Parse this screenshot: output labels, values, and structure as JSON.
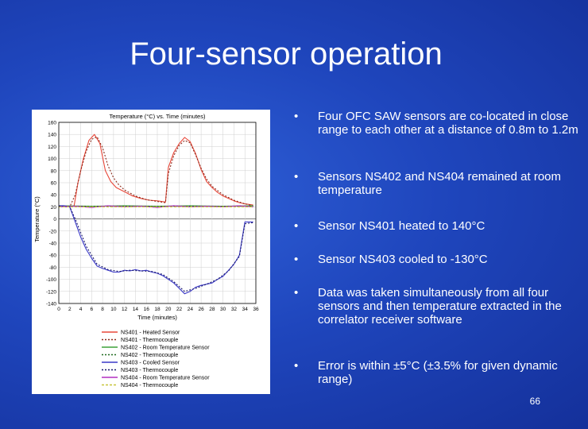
{
  "slide": {
    "title": "Four-sensor operation",
    "page_number": "66"
  },
  "bullets": [
    {
      "text": "Four OFC SAW sensors are co-located in close range to each other at a distance of 0.8m to 1.2m"
    },
    {
      "text": "Sensors NS402 and NS404 remained at room temperature"
    },
    {
      "text": "Sensor NS401 heated to 140°C"
    },
    {
      "text": "Sensor NS403 cooled to -130°C"
    },
    {
      "text": "Data was taken simultaneously from all four sensors and then temperature extracted in the correlator receiver software"
    },
    {
      "text": "Error is within ±5°C (±3.5% for given dynamic range)"
    }
  ],
  "bullet_glyph": "•",
  "chart_data": {
    "type": "line",
    "title": "Temperature (°C) vs. Time (minutes)",
    "xlabel": "Time (minutes)",
    "ylabel": "Temperature (°C)",
    "xlim": [
      0,
      36
    ],
    "ylim": [
      -140,
      160
    ],
    "xticks": [
      0,
      2,
      4,
      6,
      8,
      10,
      12,
      14,
      16,
      18,
      20,
      22,
      24,
      26,
      28,
      30,
      32,
      34,
      36
    ],
    "yticks": [
      160,
      140,
      120,
      100,
      80,
      60,
      40,
      20,
      0,
      -20,
      -40,
      -60,
      -80,
      -100,
      -120,
      -140
    ],
    "grid": true,
    "legend_position": "bottom",
    "series": [
      {
        "name": "NS401 - Heated Sensor",
        "color": "#e8483a",
        "dash": "solid",
        "x": [
          0,
          2,
          2.8,
          3.5,
          4.5,
          5.5,
          6.5,
          7.5,
          8.5,
          9.5,
          10.5,
          12,
          13.5,
          15,
          16.5,
          18,
          19.5,
          20,
          21,
          22,
          23,
          24,
          25,
          26,
          27,
          28,
          29,
          30,
          31,
          32,
          33,
          34,
          35.5
        ],
        "y": [
          22,
          20,
          22,
          60,
          100,
          130,
          140,
          125,
          80,
          62,
          52,
          45,
          38,
          34,
          31,
          30,
          28,
          85,
          110,
          125,
          135,
          128,
          108,
          82,
          62,
          52,
          44,
          38,
          34,
          30,
          27,
          25,
          23
        ]
      },
      {
        "name": "NS401 - Thermocouple",
        "color": "#8b2a1a",
        "dash": "2,2",
        "x": [
          0,
          2,
          3,
          4,
          5,
          6,
          7,
          8,
          9,
          10,
          11,
          12,
          14,
          16,
          18,
          19.5,
          20,
          21,
          22,
          23,
          24,
          25,
          26,
          27,
          28,
          30,
          32,
          34,
          35.5
        ],
        "y": [
          21,
          20,
          40,
          80,
          112,
          132,
          136,
          118,
          88,
          68,
          56,
          48,
          38,
          32,
          29,
          27,
          75,
          105,
          122,
          130,
          126,
          106,
          84,
          66,
          54,
          40,
          31,
          25,
          22
        ]
      },
      {
        "name": "NS402 - Room Temperature Sensor",
        "color": "#3fa23a",
        "dash": "solid",
        "x": [
          0,
          6,
          12,
          18,
          24,
          30,
          35.5
        ],
        "y": [
          22,
          21,
          22,
          21,
          22,
          21,
          22
        ]
      },
      {
        "name": "NS402 - Thermocouple",
        "color": "#1f6b1f",
        "dash": "2,2",
        "x": [
          0,
          12,
          24,
          35.5
        ],
        "y": [
          21,
          21,
          21,
          21
        ]
      },
      {
        "name": "NS403 - Cooled Sensor",
        "color": "#3a38c8",
        "dash": "solid",
        "x": [
          0,
          1,
          2,
          3,
          4,
          5,
          6,
          7,
          8,
          9,
          10,
          11,
          12,
          13,
          14,
          15,
          16,
          17,
          18,
          19,
          20,
          21,
          22,
          23,
          24,
          25,
          26,
          27,
          28,
          29,
          30,
          31,
          32,
          33,
          34,
          35.5
        ],
        "y": [
          22,
          22,
          20,
          -5,
          -30,
          -50,
          -65,
          -78,
          -82,
          -85,
          -88,
          -88,
          -85,
          -86,
          -84,
          -86,
          -85,
          -88,
          -90,
          -94,
          -100,
          -106,
          -115,
          -124,
          -120,
          -113,
          -110,
          -108,
          -106,
          -100,
          -95,
          -85,
          -75,
          -60,
          -5,
          -5
        ]
      },
      {
        "name": "NS403 - Thermocouple",
        "color": "#16166a",
        "dash": "2,2",
        "x": [
          0,
          2,
          3,
          5,
          7,
          9,
          11,
          13,
          15,
          17,
          19,
          21,
          23,
          25,
          27,
          29,
          31,
          33,
          34,
          35.5
        ],
        "y": [
          21,
          20,
          0,
          -45,
          -75,
          -84,
          -87,
          -85,
          -86,
          -87,
          -92,
          -104,
          -120,
          -115,
          -108,
          -100,
          -86,
          -62,
          -8,
          -6
        ]
      },
      {
        "name": "NS404 - Room Temperature Sensor",
        "color": "#b22fc2",
        "dash": "solid",
        "x": [
          0,
          3,
          6,
          9,
          12,
          15,
          18,
          21,
          24,
          27,
          30,
          33,
          35.5
        ],
        "y": [
          20,
          21,
          19,
          22,
          20,
          21,
          19,
          22,
          20,
          21,
          20,
          22,
          20
        ]
      },
      {
        "name": "NS404 - Thermocouple",
        "color": "#c7c43a",
        "dash": "3,2",
        "x": [
          0,
          12,
          24,
          35.5
        ],
        "y": [
          20,
          20,
          20,
          20
        ]
      }
    ]
  }
}
